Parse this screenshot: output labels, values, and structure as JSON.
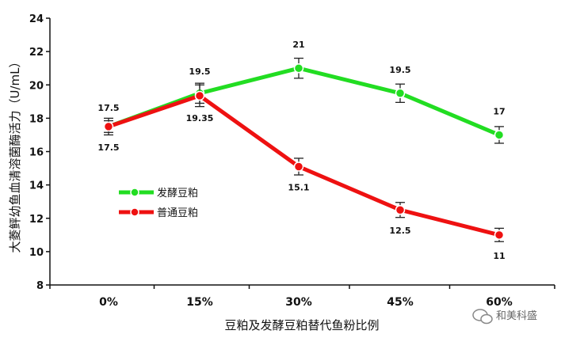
{
  "chart_data": {
    "type": "line",
    "title": "",
    "xlabel": "豆粕及发酵豆粕替代鱼粉比例",
    "ylabel": "大菱鲆幼鱼血清溶菌酶活力（U/mL）",
    "categories": [
      "0%",
      "15%",
      "30%",
      "45%",
      "60%"
    ],
    "ylim": [
      8,
      24
    ],
    "yticks": [
      8,
      10,
      12,
      14,
      16,
      18,
      20,
      22,
      24
    ],
    "grid": false,
    "legend_position": "center-left",
    "series": [
      {
        "name": "发酵豆粕",
        "color": "#22dd22",
        "values": [
          17.5,
          19.5,
          21,
          19.5,
          17
        ],
        "errors": [
          0.35,
          0.6,
          0.6,
          0.55,
          0.5
        ],
        "labels": [
          "17.5",
          "19.5",
          "21",
          "19.5",
          "17"
        ]
      },
      {
        "name": "普通豆粕",
        "color": "#ee1111",
        "values": [
          17.5,
          19.35,
          15.1,
          12.5,
          11
        ],
        "errors": [
          0.5,
          0.65,
          0.5,
          0.45,
          0.4
        ],
        "labels": [
          "17.5",
          "19.35",
          "15.1",
          "12.5",
          "11"
        ]
      }
    ]
  },
  "watermark": {
    "text": "和美科盛",
    "icon": "wechat-icon"
  }
}
